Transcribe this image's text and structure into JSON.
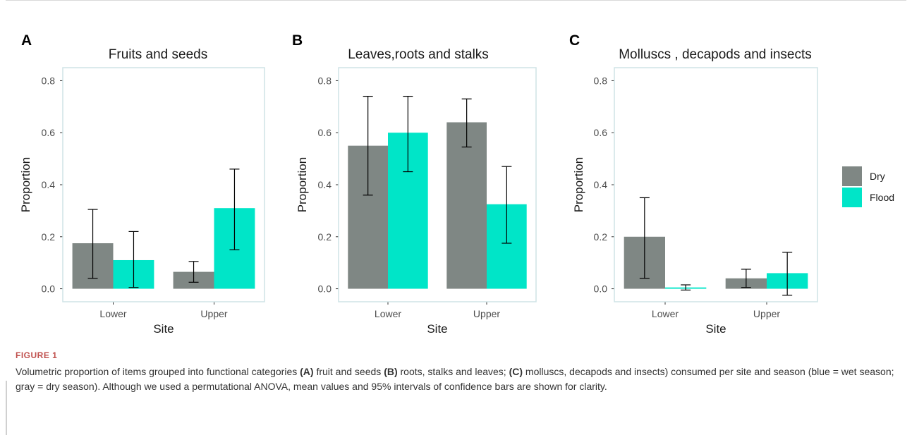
{
  "colors": {
    "dry": "#7f8784",
    "flood": "#00e5c8",
    "panel_border": "#cfe3e6",
    "error_bar": "#000000"
  },
  "legend": {
    "items": [
      {
        "label": "Dry",
        "color": "#7f8784"
      },
      {
        "label": "Flood",
        "color": "#00e5c8"
      }
    ]
  },
  "chart_data": [
    {
      "type": "bar",
      "panel": "A",
      "title": "Fruits and seeds",
      "xlabel": "Site",
      "ylabel": "Proportion",
      "categories": [
        "Lower",
        "Upper"
      ],
      "ylim": [
        -0.05,
        0.85
      ],
      "yticks": [
        "0.0",
        "0.2",
        "0.4",
        "0.6",
        "0.8"
      ],
      "series": [
        {
          "name": "Dry",
          "values": [
            0.175,
            0.065
          ],
          "ci_low": [
            0.04,
            0.025
          ],
          "ci_high": [
            0.305,
            0.105
          ]
        },
        {
          "name": "Flood",
          "values": [
            0.11,
            0.31
          ],
          "ci_low": [
            0.005,
            0.15
          ],
          "ci_high": [
            0.22,
            0.46
          ]
        }
      ]
    },
    {
      "type": "bar",
      "panel": "B",
      "title": "Leaves,roots and stalks",
      "xlabel": "Site",
      "ylabel": "Proportion",
      "categories": [
        "Lower",
        "Upper"
      ],
      "ylim": [
        -0.05,
        0.85
      ],
      "yticks": [
        "0.0",
        "0.2",
        "0.4",
        "0.6",
        "0.8"
      ],
      "series": [
        {
          "name": "Dry",
          "values": [
            0.55,
            0.64
          ],
          "ci_low": [
            0.36,
            0.545
          ],
          "ci_high": [
            0.74,
            0.73
          ]
        },
        {
          "name": "Flood",
          "values": [
            0.6,
            0.325
          ],
          "ci_low": [
            0.45,
            0.175
          ],
          "ci_high": [
            0.74,
            0.47
          ]
        }
      ]
    },
    {
      "type": "bar",
      "panel": "C",
      "title": "Molluscs , decapods and insects",
      "xlabel": "Site",
      "ylabel": "Proportion",
      "categories": [
        "Lower",
        "Upper"
      ],
      "ylim": [
        -0.05,
        0.85
      ],
      "yticks": [
        "0.0",
        "0.2",
        "0.4",
        "0.6",
        "0.8"
      ],
      "series": [
        {
          "name": "Dry",
          "values": [
            0.2,
            0.04
          ],
          "ci_low": [
            0.04,
            0.005
          ],
          "ci_high": [
            0.35,
            0.075
          ]
        },
        {
          "name": "Flood",
          "values": [
            0.005,
            0.06
          ],
          "ci_low": [
            -0.005,
            -0.025
          ],
          "ci_high": [
            0.015,
            0.14
          ]
        }
      ]
    }
  ],
  "caption": {
    "label": "FIGURE 1",
    "parts": [
      {
        "text": "Volumetric proportion of items grouped into functional categories ",
        "bold": false
      },
      {
        "text": "(A)",
        "bold": true
      },
      {
        "text": " fruit and seeds ",
        "bold": false
      },
      {
        "text": "(B)",
        "bold": true
      },
      {
        "text": " roots, stalks and leaves; ",
        "bold": false
      },
      {
        "text": "(C)",
        "bold": true
      },
      {
        "text": " molluscs, decapods and insects) consumed per site and season (blue = wet season; gray = dry season). Although we used a permutational ANOVA, mean values and 95% intervals of confidence bars are shown for clarity.",
        "bold": false
      }
    ]
  }
}
